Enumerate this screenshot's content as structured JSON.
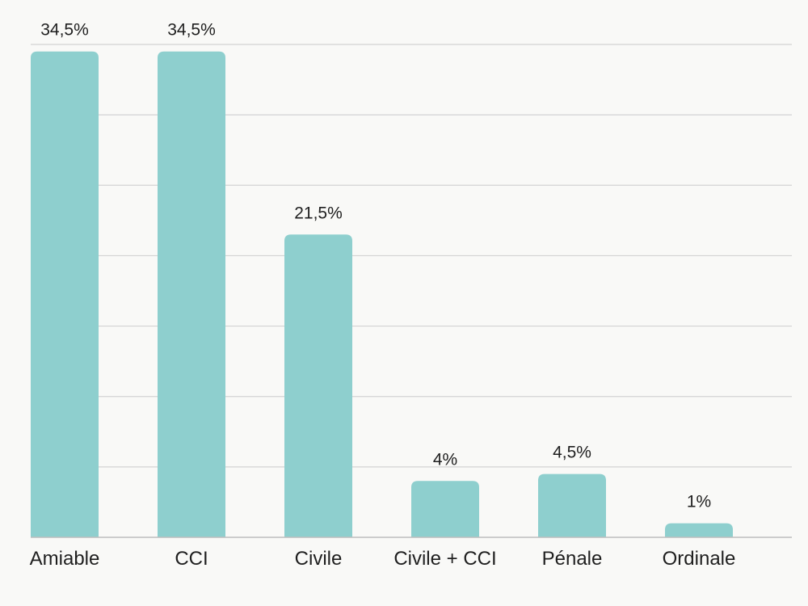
{
  "chart_data": {
    "type": "bar",
    "title": "",
    "xlabel": "",
    "ylabel": "",
    "categories": [
      "Amiable",
      "CCI",
      "Civile",
      "Civile + CCI",
      "Pénale",
      "Ordinale"
    ],
    "values": [
      34.5,
      34.5,
      21.5,
      4,
      4.5,
      1
    ],
    "value_labels": [
      "34,5%",
      "34,5%",
      "21,5%",
      "4%",
      "4,5%",
      "1%"
    ],
    "ylim": [
      0,
      35
    ],
    "grid": true,
    "legend": "none",
    "colors": {
      "bar": "#8ecfce",
      "grid": "#d3d3d3",
      "axis": "#bdbdbd",
      "text": "#1f1f1f",
      "background": "#f9f9f7"
    }
  }
}
